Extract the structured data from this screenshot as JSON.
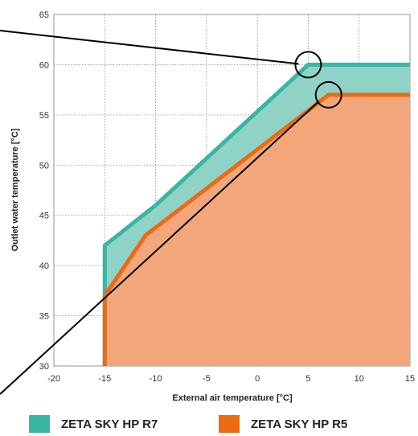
{
  "chart_data": {
    "type": "area",
    "xlabel": "External air temperature [°C]",
    "ylabel": "Outlet water temperature [°C]",
    "xlim": [
      -20,
      15
    ],
    "ylim": [
      30,
      65
    ],
    "x_ticks": [
      -20,
      -15,
      -10,
      -5,
      0,
      5,
      10,
      15
    ],
    "y_ticks": [
      30,
      35,
      40,
      45,
      50,
      55,
      60,
      65
    ],
    "grid": true,
    "legend_position": "bottom",
    "series": [
      {
        "name": "ZETA SKY HP R7",
        "color": "#3ab5a4",
        "fill": "#8fd3c7",
        "x": [
          -15,
          -15,
          -10,
          5,
          15
        ],
        "y": [
          30,
          42,
          46,
          60,
          60
        ]
      },
      {
        "name": "ZETA SKY HP R5",
        "color": "#ec6a11",
        "fill": "#f2a67a",
        "x": [
          -15,
          -15,
          -11,
          7,
          15
        ],
        "y": [
          30,
          37,
          43,
          57,
          57
        ]
      }
    ],
    "annotations": [
      {
        "type": "circle",
        "x": 5,
        "y": 60
      },
      {
        "type": "circle",
        "x": 7,
        "y": 57
      }
    ]
  }
}
